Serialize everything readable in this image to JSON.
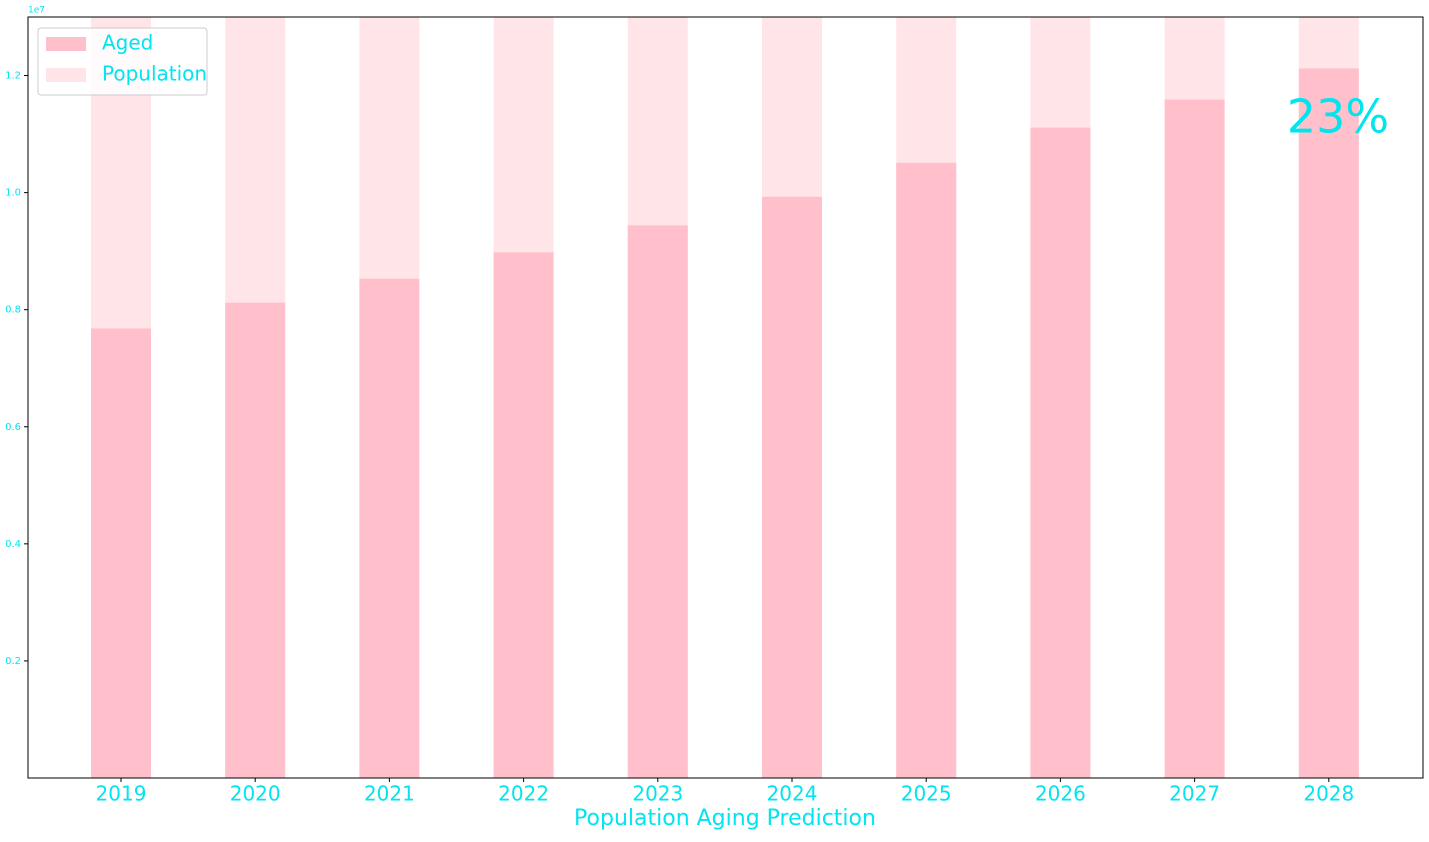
{
  "chart_data": {
    "type": "bar",
    "offset_label": "1e7",
    "xlabel": "Population Aging Prediction",
    "annotation": "23%",
    "categories": [
      "2019",
      "2020",
      "2021",
      "2022",
      "2023",
      "2024",
      "2025",
      "2026",
      "2027",
      "2028"
    ],
    "series": [
      {
        "name": "Aged",
        "color": "#ffc0cb",
        "values": [
          7680000,
          8120000,
          8530000,
          8980000,
          9440000,
          9930000,
          10510000,
          11110000,
          11590000,
          12120000
        ]
      },
      {
        "name": "Population",
        "color": "#ffe4e8",
        "values": [
          13000000,
          13000000,
          13000000,
          13000000,
          13000000,
          13000000,
          13000000,
          13000000,
          13000000,
          13000000
        ]
      }
    ],
    "ylim": [
      0,
      13000000
    ],
    "yticks": [
      {
        "value": 2000000,
        "label": "0.2"
      },
      {
        "value": 4000000,
        "label": "0.4"
      },
      {
        "value": 6000000,
        "label": "0.6"
      },
      {
        "value": 8000000,
        "label": "0.8"
      },
      {
        "value": 10000000,
        "label": "1.0"
      },
      {
        "value": 12000000,
        "label": "1.2"
      }
    ],
    "legend": "upper left",
    "grid": false
  }
}
